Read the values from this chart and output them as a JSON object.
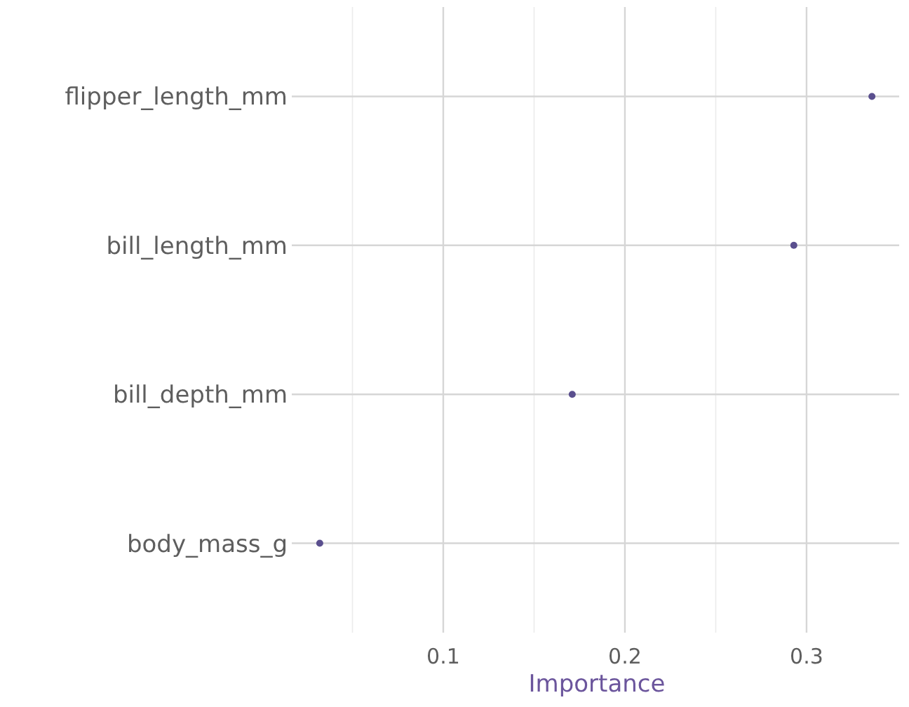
{
  "chart_data": {
    "type": "scatter",
    "orientation": "horizontal",
    "xlabel": "Importance",
    "categories": [
      "flipper_length_mm",
      "bill_length_mm",
      "bill_depth_mm",
      "body_mass_g"
    ],
    "values": [
      0.336,
      0.293,
      0.171,
      0.032
    ],
    "color": "#5a4f8e",
    "xlim": [
      0.0166,
      0.351
    ],
    "xticks": [
      {
        "value": 0.05,
        "label": null
      },
      0.1,
      {
        "value": 0.15,
        "label": null
      },
      0.2,
      {
        "value": 0.25,
        "label": null
      },
      0.3
    ],
    "grid": true,
    "marker": "circle"
  }
}
